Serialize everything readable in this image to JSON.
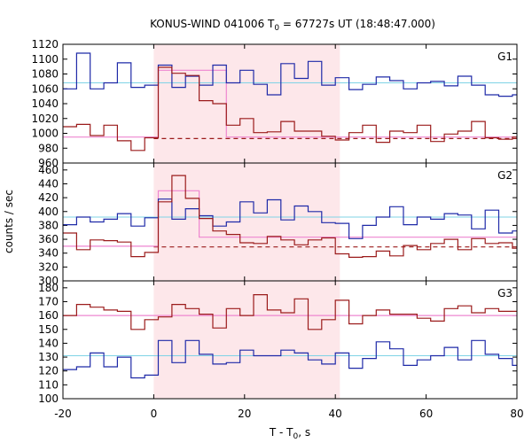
{
  "chart_data": {
    "type": "line",
    "title_main": "KONUS-WIND 041006 T",
    "title_sub": "0",
    "title_rest": " = 67727s UT (18:48:47.000)",
    "xlabel_main": "T - T",
    "xlabel_sub": "0",
    "xlabel_rest": ", s",
    "ylabel": "counts / sec",
    "xlim": [
      -20,
      80
    ],
    "xticks": [
      -20,
      0,
      20,
      40,
      60,
      80
    ],
    "shaded_interval": [
      0,
      41
    ],
    "bin_edges": [
      -20,
      -17,
      -14,
      -11,
      -8,
      -5,
      -2,
      1,
      4,
      7,
      10,
      13,
      16,
      19,
      22,
      25,
      28,
      31,
      34,
      37,
      40,
      43,
      46,
      49,
      52,
      55,
      58,
      61,
      64,
      67,
      70,
      73,
      76,
      79,
      80
    ],
    "panels": [
      {
        "label": "G1",
        "ylim": [
          960,
          1120
        ],
        "yticks": [
          960,
          980,
          1000,
          1020,
          1040,
          1060,
          1080,
          1100,
          1120
        ],
        "blue": [
          1060,
          1108,
          1060,
          1068,
          1095,
          1062,
          1065,
          1092,
          1062,
          1077,
          1065,
          1092,
          1068,
          1085,
          1066,
          1052,
          1094,
          1074,
          1097,
          1065,
          1075,
          1059,
          1066,
          1076,
          1071,
          1060,
          1068,
          1070,
          1064,
          1077,
          1065,
          1052,
          1050,
          1052
        ],
        "blue_bg": 1068,
        "red": [
          1009,
          1012,
          997,
          1011,
          990,
          977,
          994,
          1089,
          1081,
          1078,
          1044,
          1040,
          1011,
          1020,
          1001,
          1002,
          1016,
          1003,
          1003,
          996,
          991,
          1001,
          1011,
          988,
          1003,
          1001,
          1011,
          989,
          999,
          1003,
          1016,
          994,
          992,
          995
        ],
        "pink_steps": [
          [
            -20,
            995
          ],
          [
            1,
            995
          ],
          [
            1,
            1085
          ],
          [
            16,
            1085
          ],
          [
            16,
            995
          ],
          [
            80,
            995
          ]
        ],
        "red_dash": 993
      },
      {
        "label": "G2",
        "ylim": [
          300,
          470
        ],
        "yticks": [
          300,
          320,
          340,
          360,
          380,
          400,
          420,
          440,
          460
        ],
        "blue": [
          381,
          392,
          385,
          389,
          397,
          379,
          391,
          418,
          389,
          404,
          394,
          379,
          385,
          414,
          398,
          417,
          388,
          408,
          400,
          384,
          383,
          361,
          380,
          392,
          407,
          381,
          392,
          389,
          397,
          395,
          375,
          402,
          369,
          372
        ],
        "blue_bg": 392,
        "red": [
          369,
          345,
          359,
          358,
          356,
          335,
          341,
          414,
          452,
          419,
          390,
          372,
          367,
          355,
          354,
          364,
          359,
          352,
          359,
          362,
          339,
          334,
          335,
          343,
          336,
          351,
          345,
          354,
          360,
          345,
          361,
          354,
          355,
          347
        ],
        "pink_steps": [
          [
            -20,
            350
          ],
          [
            1,
            350
          ],
          [
            1,
            430
          ],
          [
            10,
            430
          ],
          [
            10,
            363
          ],
          [
            80,
            363
          ]
        ],
        "red_dash": 349
      },
      {
        "label": "G3",
        "ylim": [
          100,
          185
        ],
        "yticks": [
          100,
          110,
          120,
          130,
          140,
          150,
          160,
          170,
          180
        ],
        "blue": [
          121,
          123,
          133,
          123,
          130,
          115,
          117,
          142,
          126,
          142,
          132,
          125,
          126,
          135,
          131,
          131,
          135,
          133,
          128,
          125,
          133,
          122,
          129,
          141,
          136,
          124,
          128,
          131,
          137,
          128,
          142,
          132,
          129,
          124
        ],
        "blue_bg": 131,
        "red": [
          160,
          168,
          166,
          164,
          163,
          150,
          157,
          159,
          168,
          165,
          161,
          151,
          165,
          160,
          175,
          164,
          162,
          172,
          150,
          157,
          171,
          154,
          160,
          164,
          161,
          161,
          158,
          156,
          165,
          167,
          162,
          165,
          163,
          163
        ],
        "pink_steps": [
          [
            -20,
            160
          ],
          [
            80,
            160
          ]
        ],
        "red_dash": null
      }
    ]
  }
}
